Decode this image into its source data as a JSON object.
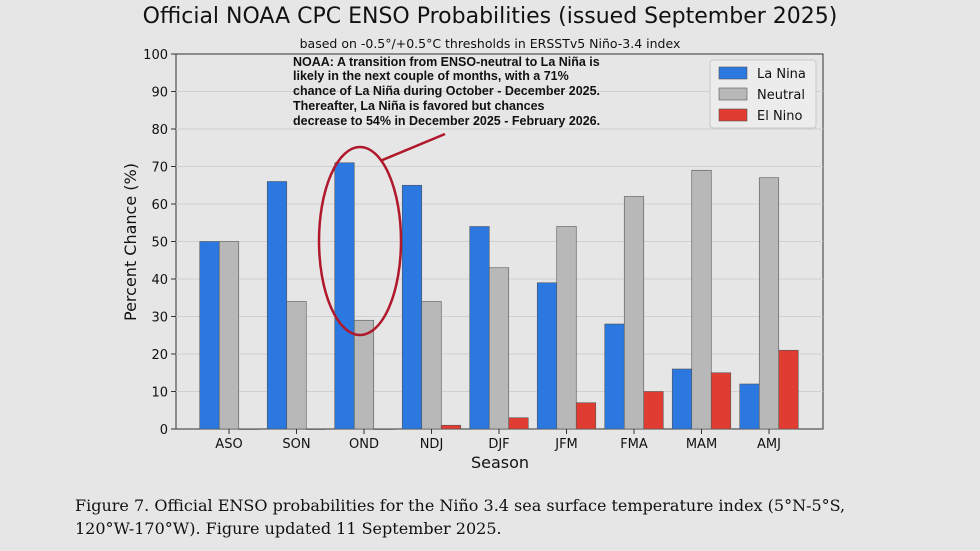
{
  "chart_data": {
    "type": "bar",
    "title": "Official NOAA CPC ENSO Probabilities (issued September 2025)",
    "subtitle": "based on -0.5°/+0.5°C thresholds in ERSSTv5 Niño-3.4 index",
    "xlabel": "Season",
    "ylabel": "Percent Chance (%)",
    "ylim": [
      0,
      100
    ],
    "yticks": [
      "0",
      "10",
      "20",
      "30",
      "40",
      "50",
      "60",
      "70",
      "80",
      "90",
      "100"
    ],
    "grid": "horizontal",
    "legend_position": "top-right",
    "categories": [
      "ASO",
      "SON",
      "OND",
      "NDJ",
      "DJF",
      "JFM",
      "FMA",
      "MAM",
      "AMJ"
    ],
    "series": [
      {
        "name": "La Nina",
        "color": "#2a78e0",
        "values": [
          50,
          66,
          71,
          65,
          54,
          39,
          28,
          16,
          12
        ]
      },
      {
        "name": "Neutral",
        "color": "#b8b8b8",
        "values": [
          50,
          34,
          29,
          34,
          43,
          54,
          62,
          69,
          67
        ]
      },
      {
        "name": "El Nino",
        "color": "#e03c32",
        "values": [
          0,
          0,
          0,
          1,
          3,
          7,
          10,
          15,
          21
        ]
      }
    ],
    "annotation": {
      "lines": [
        "NOAA: A transition from ENSO-neutral to La Niña is",
        "likely in the next couple of months, with a 71%",
        "chance of La Niña during October - December 2025.",
        "Thereafter, La Niña is favored but chances",
        "decrease to 54% in December 2025 - February 2026."
      ],
      "highlight_category": "OND",
      "highlight_color": "#b0182c"
    }
  },
  "caption": "Figure 7. Official ENSO probabilities for the Niño 3.4 sea surface temperature index (5°N-5°S,\n120°W-170°W). Figure updated 11 September 2025."
}
